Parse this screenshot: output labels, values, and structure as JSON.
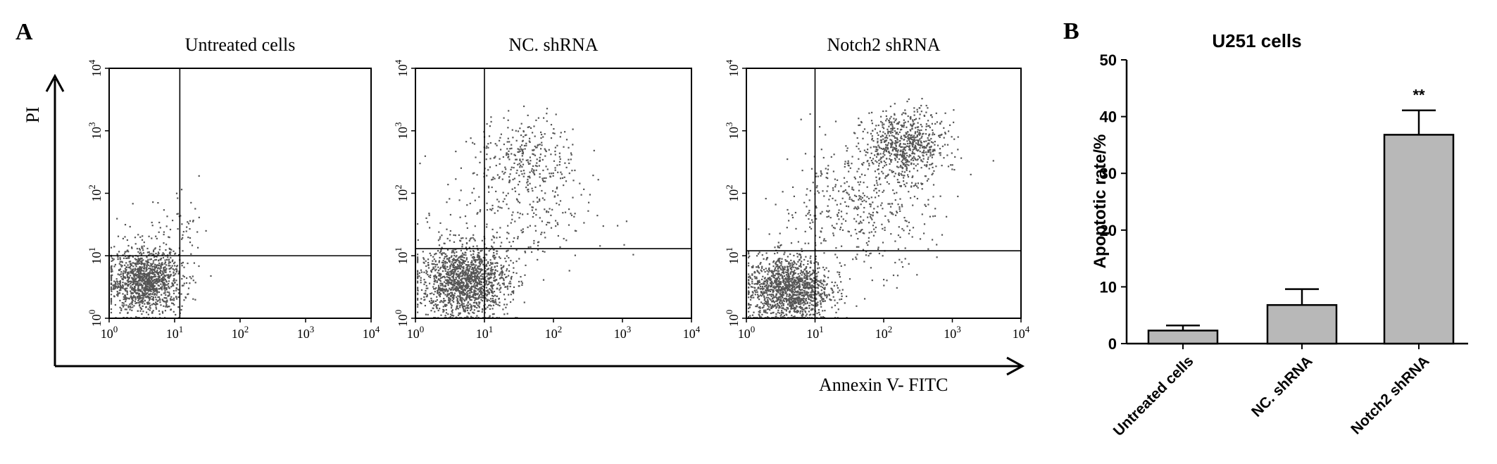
{
  "panel_a_label": "A",
  "panel_b_label": "B",
  "y_axis_label": "PI",
  "x_axis_label": "Annexin V- FITC",
  "tick_labels": {
    "decades": [
      {
        "base": "10",
        "exp": "0"
      },
      {
        "base": "10",
        "exp": "1"
      },
      {
        "base": "10",
        "exp": "2"
      },
      {
        "base": "10",
        "exp": "3"
      },
      {
        "base": "10",
        "exp": "4"
      }
    ]
  },
  "colors": {
    "bar_fill": "#b8b8b8",
    "dots": "#555555",
    "axis": "#000000"
  },
  "chart_data": [
    {
      "type": "scatter",
      "title": "Untreated cells",
      "xlabel": "Annexin V- FITC",
      "ylabel": "PI",
      "x_scale": "log",
      "y_scale": "log",
      "xlim": [
        1,
        10000
      ],
      "ylim": [
        1,
        10000
      ],
      "gate": {
        "x": 12,
        "y": 10
      },
      "populations": [
        {
          "center_x": 3.5,
          "center_y": 4,
          "spread_log": 0.28,
          "count": 1300
        },
        {
          "center_x": 10,
          "center_y": 25,
          "spread_log": 0.3,
          "count": 60
        }
      ]
    },
    {
      "type": "scatter",
      "title": "NC. shRNA",
      "xlabel": "Annexin V- FITC",
      "ylabel": "PI",
      "x_scale": "log",
      "y_scale": "log",
      "xlim": [
        1,
        10000
      ],
      "ylim": [
        1,
        10000
      ],
      "gate": {
        "x": 10,
        "y": 13
      },
      "populations": [
        {
          "center_x": 5,
          "center_y": 4,
          "spread_log": 0.32,
          "count": 1500
        },
        {
          "center_x": 40,
          "center_y": 420,
          "spread_log": 0.35,
          "count": 260
        },
        {
          "center_x": 30,
          "center_y": 50,
          "spread_log": 0.55,
          "count": 260
        }
      ]
    },
    {
      "type": "scatter",
      "title": "Notch2 shRNA",
      "xlabel": "Annexin V- FITC",
      "ylabel": "PI",
      "x_scale": "log",
      "y_scale": "log",
      "xlim": [
        1,
        10000
      ],
      "ylim": [
        1,
        10000
      ],
      "gate": {
        "x": 10,
        "y": 12
      },
      "populations": [
        {
          "center_x": 4,
          "center_y": 3,
          "spread_log": 0.3,
          "count": 1400
        },
        {
          "center_x": 200,
          "center_y": 600,
          "spread_log": 0.3,
          "count": 700
        },
        {
          "center_x": 40,
          "center_y": 60,
          "spread_log": 0.55,
          "count": 450
        }
      ]
    },
    {
      "type": "bar",
      "title": "U251 cells",
      "xlabel": "",
      "ylabel": "Apoptotic rate/%",
      "categories": [
        "Untreated cells",
        "NC. shRNA",
        "Notch2 shRNA"
      ],
      "values": [
        2.3,
        6.8,
        36.8
      ],
      "errors": [
        0.9,
        2.8,
        4.3
      ],
      "annotations": [
        "",
        "",
        "**"
      ],
      "ylim": [
        0,
        50
      ],
      "yticks": [
        0,
        10,
        20,
        30,
        40,
        50
      ]
    }
  ]
}
